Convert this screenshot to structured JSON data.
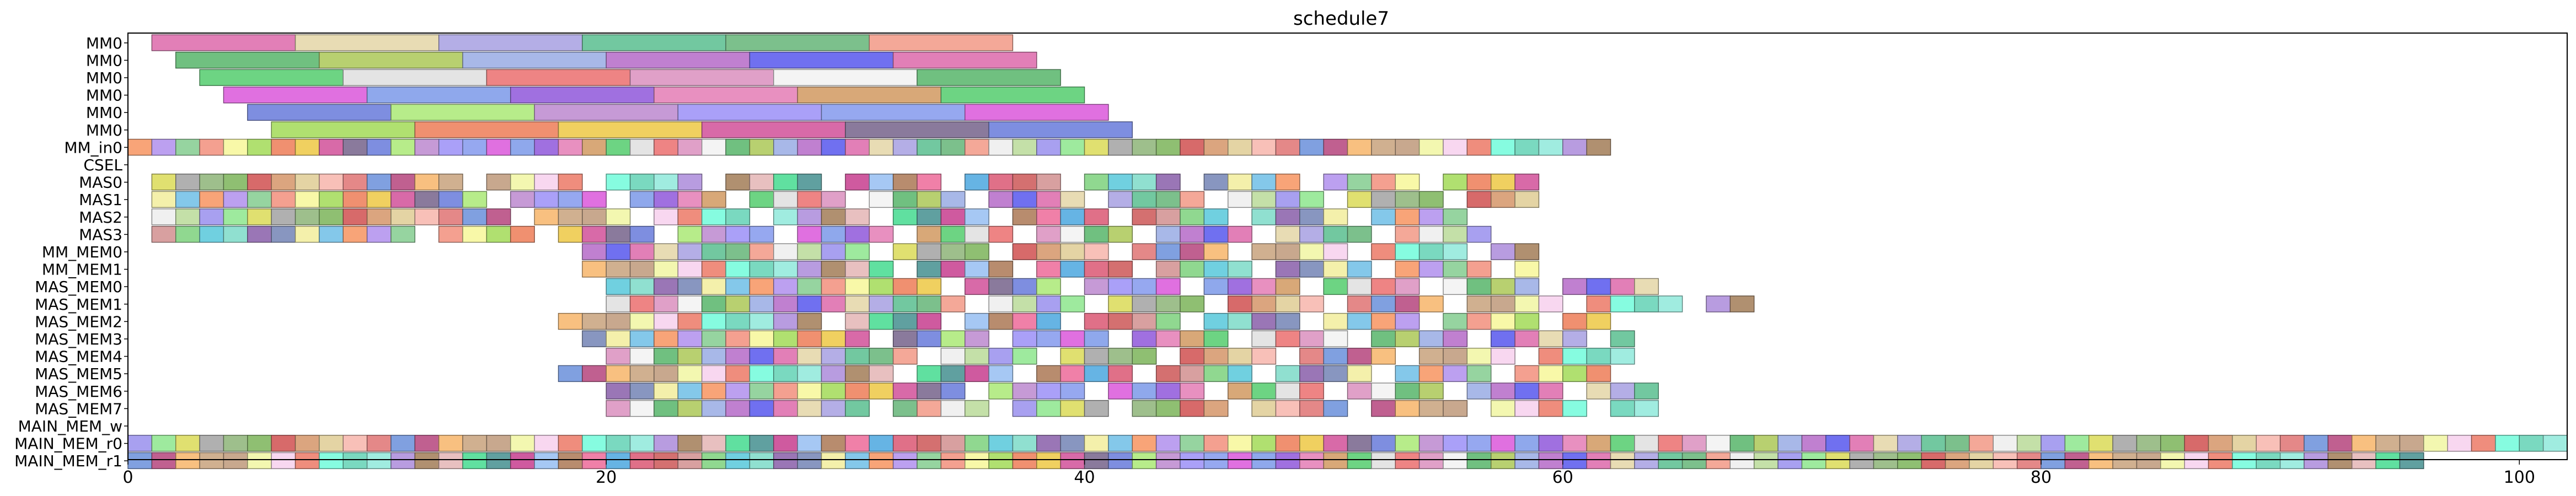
{
  "chart_data": {
    "type": "bar",
    "orientation": "horizontal",
    "title": "schedule7",
    "xlabel": "",
    "ylabel": "",
    "xlim": [
      0,
      102
    ],
    "xticks": [
      0,
      20,
      40,
      60,
      80,
      100
    ],
    "grid": false,
    "lanes": [
      "MM0",
      "MM0",
      "MM0",
      "MM0",
      "MM0",
      "MM0",
      "MM_in0",
      "CSEL",
      "MAS0",
      "MAS1",
      "MAS2",
      "MAS3",
      "MM_MEM0",
      "MM_MEM1",
      "MAS_MEM0",
      "MAS_MEM1",
      "MAS_MEM2",
      "MAS_MEM3",
      "MAS_MEM4",
      "MAS_MEM5",
      "MAS_MEM6",
      "MAS_MEM7",
      "MAIN_MEM_w",
      "MAIN_MEM_r0",
      "MAIN_MEM_r1"
    ],
    "palette": [
      "#e27fb7",
      "#c8a88e",
      "#9a76b6",
      "#d8a878",
      "#9ebf8c",
      "#cf5a9f",
      "#d86aa8",
      "#e8dcb4",
      "#f3f7b0",
      "#8896c0",
      "#6dd483",
      "#8fbf72",
      "#a6c8f4",
      "#8a7a9c",
      "#b4aee6",
      "#f8d7f0",
      "#f4f0ab",
      "#e4e4e4",
      "#d76a6a",
      "#b88c6e",
      "#7e8ee0",
      "#72c8a0",
      "#ef8d7d",
      "#84c8ea",
      "#ee8484",
      "#dba57f",
      "#f080a8",
      "#b7ec8a",
      "#7cc08c",
      "#86fce0",
      "#f8a478",
      "#e0a0c8",
      "#e4d4a4",
      "#66b4e4",
      "#c69ad6",
      "#f4a898",
      "#7ad9c0",
      "#bca0f0",
      "#f4f4f4",
      "#f8c0b8",
      "#e07088",
      "#aaa0f8",
      "#f0f0f0",
      "#a0ece0",
      "#96d4a0",
      "#70c080",
      "#e48888",
      "#d47070",
      "#96a8f0",
      "#c4e0a8",
      "#b89ce0",
      "#f4a090",
      "#b8d070",
      "#80a0e0",
      "#d8a0a0",
      "#e070e0",
      "#a8a0f0",
      "#b09070",
      "#f8f8a8",
      "#a8b8e8",
      "#c06090",
      "#90d890",
      "#8fa8ec",
      "#9eea9e",
      "#e8c0c0",
      "#b0e070",
      "#c080d0",
      "#f8c080",
      "#70d0e0",
      "#a070e0",
      "#e0e070",
      "#60e0a0",
      "#f09070",
      "#7070f0",
      "#d0b090",
      "#90e0d0",
      "#e890c0",
      "#b0b0b0",
      "#60a0a0",
      "#f0d060"
    ],
    "start": 1,
    "slot": 1
  }
}
